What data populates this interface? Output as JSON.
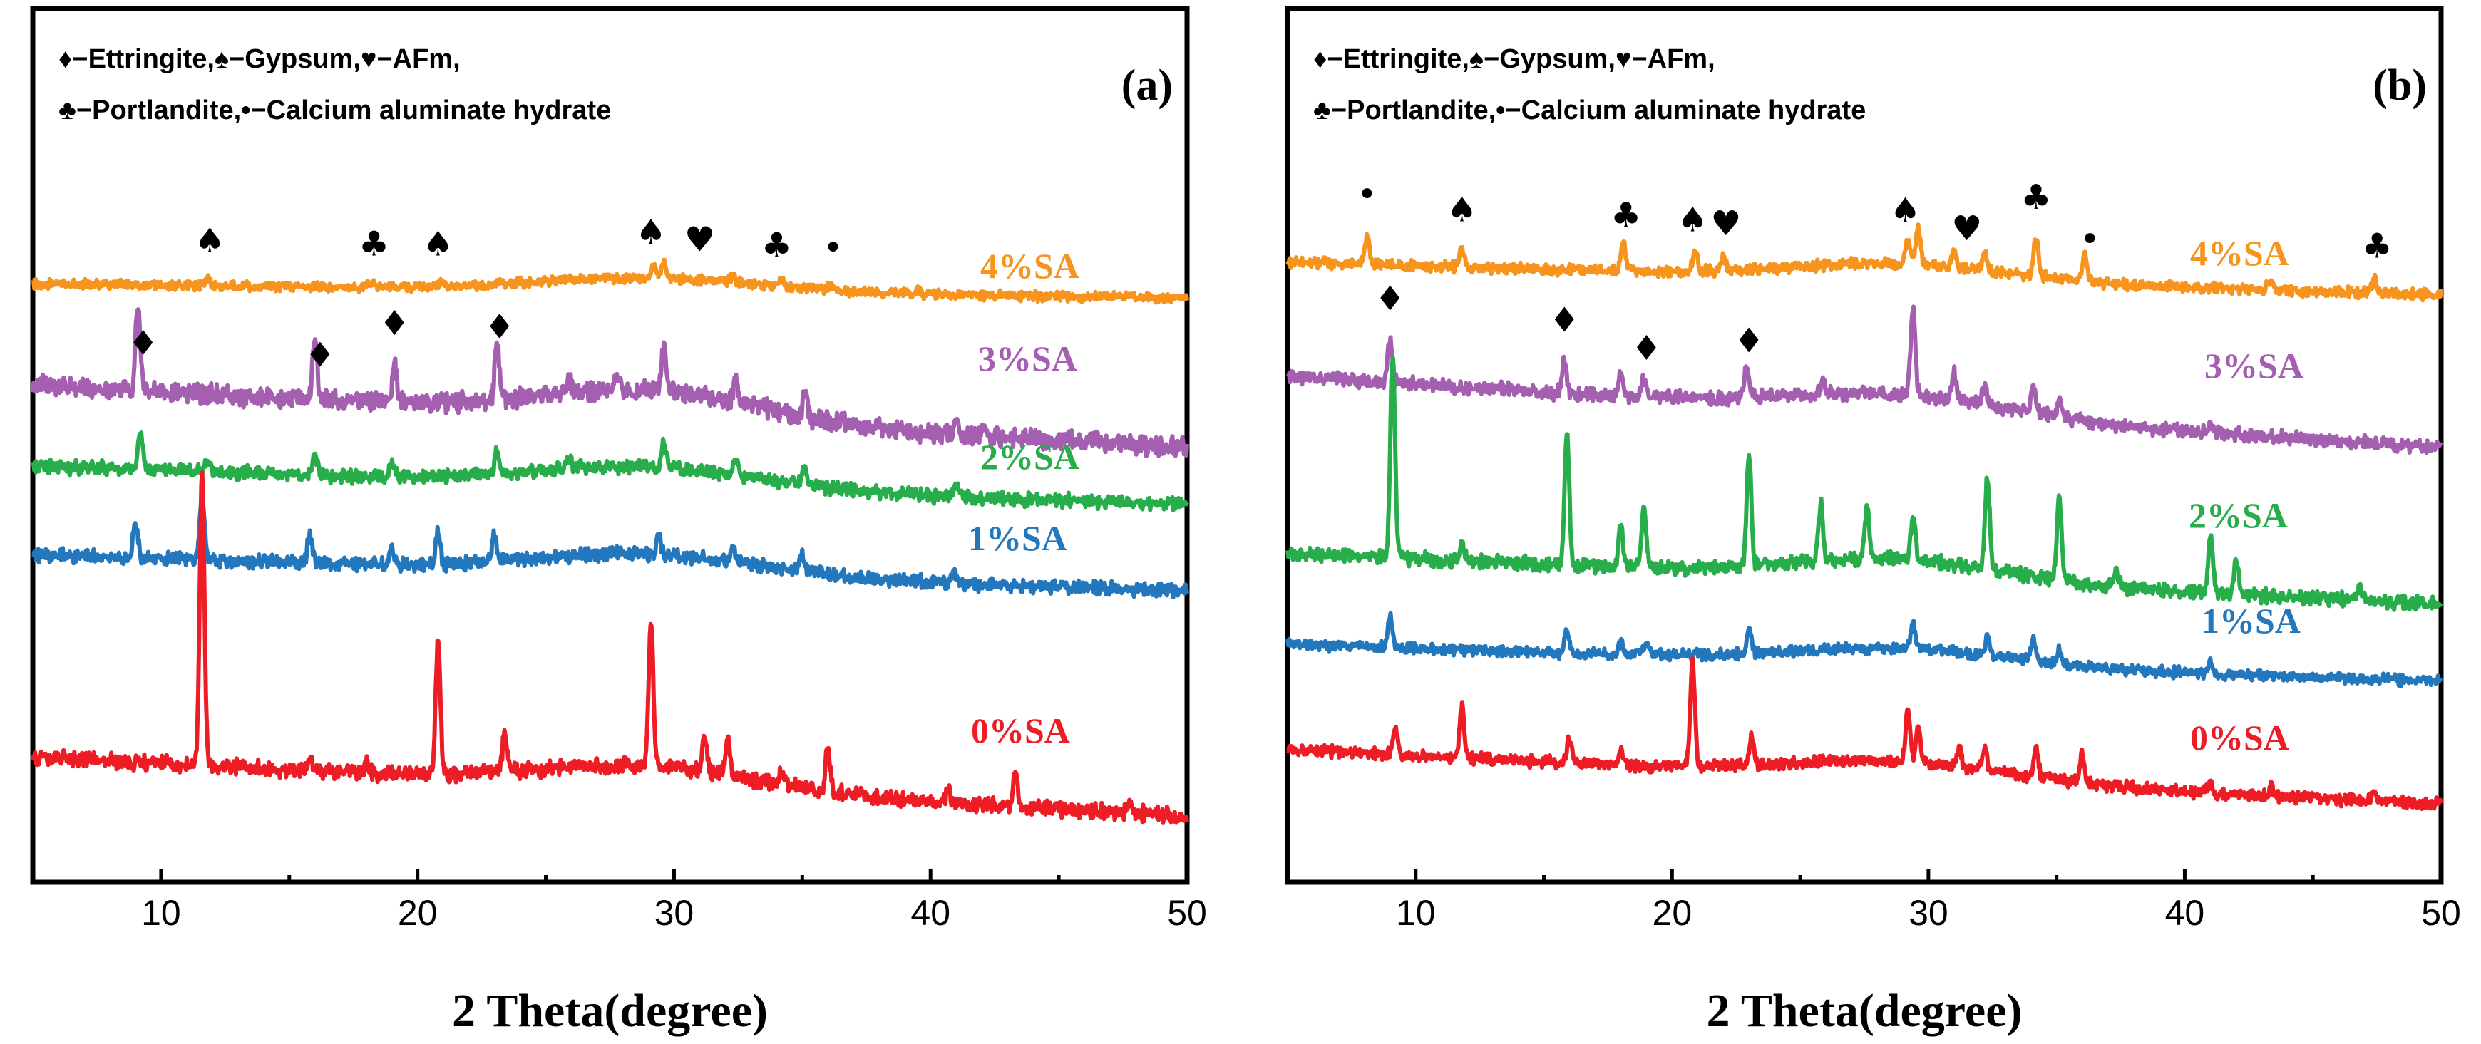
{
  "chart_data": [
    {
      "type": "line",
      "panel": "(a)",
      "xlabel": "2 Theta(degree)",
      "ylabel": "",
      "xlim": [
        5,
        50
      ],
      "xticks": [
        10,
        20,
        30,
        40,
        50
      ],
      "legend": [
        "♦−Ettringite,♠−Gypsum,♥−AFm,",
        "♣−Portlandite,•−Calcium aluminate hydrate"
      ],
      "series": [
        {
          "name": "4%SA",
          "color": "#f7941d",
          "start": 0.93,
          "end": 0.74,
          "peaks": [
            [
              11.8,
              0.12
            ],
            [
              18.2,
              0.08
            ],
            [
              20.9,
              0.06
            ],
            [
              23.2,
              0.05
            ],
            [
              29.2,
              0.14
            ],
            [
              29.6,
              0.2
            ],
            [
              32.3,
              0.08
            ],
            [
              34.2,
              0.1
            ],
            [
              36.1,
              0.06
            ],
            [
              39.5,
              0.04
            ]
          ]
        },
        {
          "name": "3%SA",
          "color": "#a45fb0",
          "start": 1.2,
          "end": 0.8,
          "peaks": [
            [
              9.1,
              0.55
            ],
            [
              16.0,
              0.38
            ],
            [
              19.1,
              0.25
            ],
            [
              23.1,
              0.38
            ],
            [
              25.9,
              0.1
            ],
            [
              27.8,
              0.08
            ],
            [
              29.6,
              0.3
            ],
            [
              32.4,
              0.15
            ],
            [
              35.1,
              0.15
            ],
            [
              41.0,
              0.12
            ],
            [
              42.1,
              0.06
            ]
          ]
        },
        {
          "name": "2%SA",
          "color": "#27ad4a",
          "start": 1.05,
          "end": 0.7,
          "peaks": [
            [
              9.2,
              0.32
            ],
            [
              11.8,
              0.12
            ],
            [
              16.0,
              0.2
            ],
            [
              19.0,
              0.14
            ],
            [
              23.1,
              0.22
            ],
            [
              25.9,
              0.1
            ],
            [
              29.6,
              0.22
            ],
            [
              32.4,
              0.14
            ],
            [
              35.1,
              0.15
            ],
            [
              41.0,
              0.1
            ]
          ]
        },
        {
          "name": "1%SA",
          "color": "#2378bd",
          "start": 1.05,
          "end": 0.72,
          "peaks": [
            [
              9.0,
              0.3
            ],
            [
              11.6,
              0.6
            ],
            [
              15.8,
              0.25
            ],
            [
              19.0,
              0.14
            ],
            [
              20.8,
              0.3
            ],
            [
              23.0,
              0.25
            ],
            [
              29.4,
              0.17
            ],
            [
              32.3,
              0.14
            ],
            [
              35.0,
              0.15
            ],
            [
              40.9,
              0.1
            ]
          ]
        },
        {
          "name": "0%SA",
          "color": "#ee1c25",
          "start": 1.2,
          "end": 0.72,
          "peaks": [
            [
              11.6,
              2.4
            ],
            [
              15.8,
              0.1
            ],
            [
              18.0,
              0.07
            ],
            [
              20.8,
              1.1
            ],
            [
              23.4,
              0.3
            ],
            [
              29.1,
              1.2
            ],
            [
              31.2,
              0.3
            ],
            [
              32.1,
              0.3
            ],
            [
              34.2,
              0.12
            ],
            [
              36.0,
              0.35
            ],
            [
              40.7,
              0.12
            ],
            [
              43.3,
              0.3
            ],
            [
              47.8,
              0.08
            ]
          ]
        }
      ],
      "annotations": [
        {
          "symbol": "♠",
          "x": 11.9,
          "series": "4%SA"
        },
        {
          "symbol": "♣",
          "x": 18.3,
          "series": "4%SA"
        },
        {
          "symbol": "♠",
          "x": 20.8,
          "series": "4%SA"
        },
        {
          "symbol": "♠",
          "x": 29.1,
          "series": "4%SA"
        },
        {
          "symbol": "♥",
          "x": 31.0,
          "series": "4%SA"
        },
        {
          "symbol": "♣",
          "x": 34.0,
          "series": "4%SA"
        },
        {
          "symbol": "•",
          "x": 36.2,
          "series": "4%SA"
        },
        {
          "symbol": "♦",
          "x": 9.3,
          "series": "3%SA"
        },
        {
          "symbol": "♦",
          "x": 16.2,
          "series": "3%SA"
        },
        {
          "symbol": "♦",
          "x": 19.1,
          "series": "3%SA"
        },
        {
          "symbol": "♦",
          "x": 23.2,
          "series": "3%SA"
        }
      ]
    },
    {
      "type": "line",
      "panel": "(b)",
      "xlabel": "2 Theta(degree)",
      "ylabel": "",
      "xlim": [
        5,
        50
      ],
      "xticks": [
        10,
        20,
        30,
        40,
        50
      ],
      "legend": [
        "♦−Ettringite,♠−Gypsum,♥−AFm,",
        "♣−Portlandite,•−Calcium aluminate hydrate"
      ],
      "series": [
        {
          "name": "4%SA",
          "color": "#f7941d",
          "start": 1.1,
          "end": 0.72,
          "peaks": [
            [
              8.1,
              0.35
            ],
            [
              11.8,
              0.2
            ],
            [
              18.1,
              0.35
            ],
            [
              20.9,
              0.25
            ],
            [
              22.0,
              0.15
            ],
            [
              29.2,
              0.3
            ],
            [
              29.6,
              0.45
            ],
            [
              31.0,
              0.2
            ],
            [
              32.2,
              0.2
            ],
            [
              34.2,
              0.45
            ],
            [
              36.1,
              0.3
            ],
            [
              43.3,
              0.12
            ],
            [
              47.4,
              0.15
            ]
          ]
        },
        {
          "name": "3%SA",
          "color": "#a45fb0",
          "start": 1.35,
          "end": 0.7,
          "peaks": [
            [
              9.0,
              0.4
            ],
            [
              15.8,
              0.3
            ],
            [
              18.0,
              0.2
            ],
            [
              18.9,
              0.15
            ],
            [
              22.9,
              0.28
            ],
            [
              25.9,
              0.1
            ],
            [
              29.4,
              0.8
            ],
            [
              31.0,
              0.25
            ],
            [
              32.2,
              0.18
            ],
            [
              34.1,
              0.25
            ],
            [
              35.1,
              0.15
            ],
            [
              41.0,
              0.1
            ]
          ]
        },
        {
          "name": "2%SA",
          "color": "#27ad4a",
          "start": 1.2,
          "end": 0.75,
          "peaks": [
            [
              9.1,
              1.8
            ],
            [
              11.8,
              0.15
            ],
            [
              15.9,
              1.2
            ],
            [
              18.0,
              0.35
            ],
            [
              18.9,
              0.55
            ],
            [
              23.0,
              1.0
            ],
            [
              25.8,
              0.5
            ],
            [
              27.6,
              0.45
            ],
            [
              29.4,
              0.4
            ],
            [
              32.3,
              0.8
            ],
            [
              35.1,
              0.7
            ],
            [
              37.3,
              0.15
            ],
            [
              41.0,
              0.5
            ],
            [
              42.0,
              0.3
            ],
            [
              46.8,
              0.1
            ]
          ]
        },
        {
          "name": "1%SA",
          "color": "#2378bd",
          "start": 1.15,
          "end": 0.72,
          "peaks": [
            [
              9.0,
              0.35
            ],
            [
              15.9,
              0.25
            ],
            [
              18.0,
              0.15
            ],
            [
              19.0,
              0.15
            ],
            [
              23.0,
              0.3
            ],
            [
              29.4,
              0.3
            ],
            [
              32.3,
              0.2
            ],
            [
              34.1,
              0.25
            ],
            [
              35.1,
              0.15
            ],
            [
              41.0,
              0.12
            ]
          ]
        },
        {
          "name": "0%SA",
          "color": "#ee1c25",
          "start": 1.3,
          "end": 0.72,
          "peaks": [
            [
              9.2,
              0.3
            ],
            [
              11.8,
              0.55
            ],
            [
              16.0,
              0.25
            ],
            [
              18.0,
              0.15
            ],
            [
              20.8,
              1.1
            ],
            [
              23.1,
              0.3
            ],
            [
              29.2,
              0.55
            ],
            [
              29.6,
              0.35
            ],
            [
              31.2,
              0.2
            ],
            [
              32.2,
              0.2
            ],
            [
              34.2,
              0.3
            ],
            [
              36.0,
              0.3
            ],
            [
              41.0,
              0.12
            ],
            [
              43.4,
              0.1
            ],
            [
              47.4,
              0.1
            ]
          ]
        }
      ],
      "annotations": [
        {
          "symbol": "•",
          "x": 8.1,
          "series": "4%SA"
        },
        {
          "symbol": "♠",
          "x": 11.8,
          "series": "4%SA"
        },
        {
          "symbol": "♣",
          "x": 18.2,
          "series": "4%SA"
        },
        {
          "symbol": "♠",
          "x": 20.8,
          "series": "4%SA"
        },
        {
          "symbol": "♥",
          "x": 22.1,
          "series": "4%SA"
        },
        {
          "symbol": "♠",
          "x": 29.1,
          "series": "4%SA"
        },
        {
          "symbol": "♥",
          "x": 31.5,
          "series": "4%SA"
        },
        {
          "symbol": "♣",
          "x": 34.2,
          "series": "4%SA"
        },
        {
          "symbol": "•",
          "x": 36.3,
          "series": "4%SA"
        },
        {
          "symbol": "♣",
          "x": 47.5,
          "series": "4%SA"
        },
        {
          "symbol": "♦",
          "x": 9.0,
          "series": "3%SA"
        },
        {
          "symbol": "♦",
          "x": 15.8,
          "series": "3%SA"
        },
        {
          "symbol": "♦",
          "x": 19.0,
          "series": "3%SA"
        },
        {
          "symbol": "♦",
          "x": 23.0,
          "series": "3%SA"
        }
      ]
    }
  ]
}
